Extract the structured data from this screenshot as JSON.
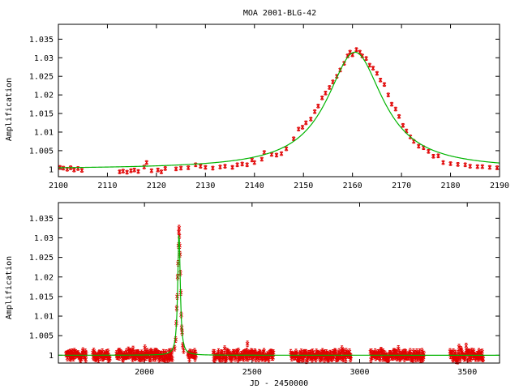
{
  "chart_data": [
    {
      "type": "scatter",
      "title": "MOA 2001-BLG-42",
      "xlabel": "",
      "ylabel": "Amplification",
      "xlim": [
        2100,
        2190
      ],
      "ylim": [
        0.998,
        1.039
      ],
      "xticks": [
        "2100",
        "2110",
        "2120",
        "2130",
        "2140",
        "2150",
        "2160",
        "2170",
        "2180",
        "2190"
      ],
      "yticks": [
        "1",
        "1.005",
        "1.01",
        "1.015",
        "1.02",
        "1.025",
        "1.03",
        "1.035"
      ],
      "grid": false,
      "model": {
        "t0": 2160.5,
        "peak": 1.0315,
        "width": 7.0,
        "baseline": 1.0
      },
      "series": [
        {
          "points": [
            [
              2100.3,
              1.0005
            ],
            [
              2101.0,
              1.0003
            ],
            [
              2101.8,
              1.0
            ],
            [
              2102.5,
              1.0004
            ],
            [
              2103.2,
              0.9998
            ],
            [
              2104.0,
              1.0002
            ],
            [
              2104.8,
              0.9997
            ],
            [
              2112.5,
              0.9993
            ],
            [
              2113.2,
              0.9995
            ],
            [
              2114.0,
              0.9992
            ],
            [
              2114.8,
              0.9996
            ],
            [
              2115.5,
              0.9998
            ],
            [
              2116.3,
              0.9994
            ],
            [
              2117.5,
              1.0006
            ],
            [
              2118.0,
              1.0018
            ],
            [
              2119.0,
              0.9996
            ],
            [
              2120.3,
              0.9998
            ],
            [
              2121.0,
              0.9993
            ],
            [
              2121.8,
              1.0002
            ],
            [
              2124.0,
              1.0001
            ],
            [
              2125.0,
              1.0003
            ],
            [
              2126.5,
              1.0004
            ],
            [
              2128.0,
              1.0012
            ],
            [
              2129.0,
              1.0008
            ],
            [
              2130.0,
              1.0005
            ],
            [
              2131.5,
              1.0003
            ],
            [
              2133.0,
              1.0006
            ],
            [
              2134.0,
              1.0008
            ],
            [
              2135.5,
              1.0005
            ],
            [
              2136.5,
              1.0012
            ],
            [
              2137.5,
              1.0014
            ],
            [
              2138.5,
              1.0012
            ],
            [
              2139.5,
              1.0025
            ],
            [
              2140.0,
              1.0018
            ],
            [
              2141.5,
              1.0027
            ],
            [
              2142.0,
              1.0045
            ],
            [
              2143.5,
              1.004
            ],
            [
              2144.5,
              1.0038
            ],
            [
              2145.5,
              1.0042
            ],
            [
              2146.5,
              1.0055
            ],
            [
              2148.0,
              1.0082
            ],
            [
              2149.0,
              1.0108
            ],
            [
              2149.8,
              1.0113
            ],
            [
              2150.5,
              1.0125
            ],
            [
              2151.5,
              1.0135
            ],
            [
              2152.3,
              1.0155
            ],
            [
              2153.0,
              1.017
            ],
            [
              2153.8,
              1.0192
            ],
            [
              2154.5,
              1.0205
            ],
            [
              2155.3,
              1.022
            ],
            [
              2156.0,
              1.0235
            ],
            [
              2156.8,
              1.025
            ],
            [
              2157.5,
              1.0267
            ],
            [
              2158.3,
              1.0285
            ],
            [
              2159.0,
              1.0305
            ],
            [
              2159.5,
              1.0315
            ],
            [
              2160.0,
              1.0308
            ],
            [
              2160.8,
              1.0322
            ],
            [
              2161.5,
              1.0315
            ],
            [
              2162.0,
              1.0305
            ],
            [
              2162.8,
              1.0298
            ],
            [
              2163.5,
              1.028
            ],
            [
              2164.2,
              1.0272
            ],
            [
              2165.0,
              1.0258
            ],
            [
              2165.7,
              1.024
            ],
            [
              2166.5,
              1.0228
            ],
            [
              2167.3,
              1.02
            ],
            [
              2168.0,
              1.0175
            ],
            [
              2168.8,
              1.0162
            ],
            [
              2169.5,
              1.0142
            ],
            [
              2170.3,
              1.0118
            ],
            [
              2171.0,
              1.0103
            ],
            [
              2171.8,
              1.0087
            ],
            [
              2172.5,
              1.0075
            ],
            [
              2173.5,
              1.0062
            ],
            [
              2174.5,
              1.0058
            ],
            [
              2175.5,
              1.0048
            ],
            [
              2176.5,
              1.0035
            ],
            [
              2177.5,
              1.0036
            ],
            [
              2178.5,
              1.0018
            ],
            [
              2180.0,
              1.0015
            ],
            [
              2181.5,
              1.0013
            ],
            [
              2183.0,
              1.0012
            ],
            [
              2184.0,
              1.0008
            ],
            [
              2185.5,
              1.0007
            ],
            [
              2186.5,
              1.0007
            ],
            [
              2188.0,
              1.0005
            ],
            [
              2189.5,
              1.0004
            ]
          ]
        }
      ]
    },
    {
      "type": "scatter",
      "title": "",
      "xlabel": "JD - 2450000",
      "ylabel": "Amplification",
      "xlim": [
        1600,
        3650
      ],
      "ylim": [
        0.998,
        1.039
      ],
      "xticks": [
        "2000",
        "2500",
        "3000",
        "3500"
      ],
      "xtick_values": [
        2000,
        2500,
        3000,
        3500
      ],
      "yticks": [
        "1",
        "1.005",
        "1.01",
        "1.015",
        "1.02",
        "1.025",
        "1.03",
        "1.035"
      ],
      "grid": false,
      "model": {
        "t0": 2160.5,
        "peak": 1.0315,
        "width": 7.0,
        "baseline": 1.0
      },
      "observing_seasons": [
        [
          1635,
          1730
        ],
        [
          1760,
          1840
        ],
        [
          1870,
          2240
        ],
        [
          2320,
          2600
        ],
        [
          2680,
          2960
        ],
        [
          3050,
          3300
        ],
        [
          3420,
          3575
        ]
      ],
      "event_points": [
        [
          2140.0,
          1.0018
        ],
        [
          2145.0,
          1.004
        ],
        [
          2148.0,
          1.0082
        ],
        [
          2150.0,
          1.012
        ],
        [
          2152.0,
          1.015
        ],
        [
          2154.0,
          1.02
        ],
        [
          2156.0,
          1.0235
        ],
        [
          2158.0,
          1.028
        ],
        [
          2159.5,
          1.0315
        ],
        [
          2160.8,
          1.0325
        ],
        [
          2162.0,
          1.0305
        ],
        [
          2163.5,
          1.028
        ],
        [
          2165.0,
          1.0258
        ],
        [
          2167.0,
          1.021
        ],
        [
          2169.0,
          1.016
        ],
        [
          2171.0,
          1.0103
        ],
        [
          2173.0,
          1.007
        ],
        [
          2175.0,
          1.0058
        ],
        [
          2178.0,
          1.0025
        ],
        [
          2182.0,
          1.0012
        ]
      ]
    }
  ]
}
